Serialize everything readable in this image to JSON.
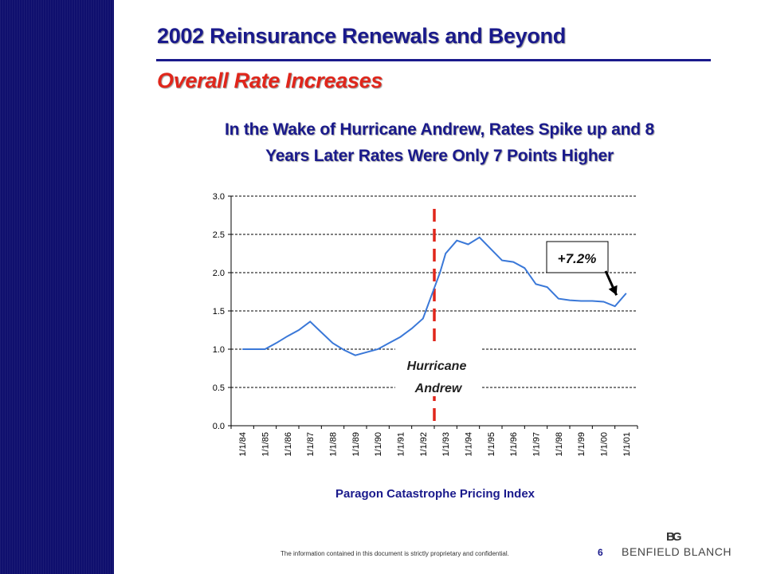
{
  "slide": {
    "title": "2002 Reinsurance Renewals and Beyond",
    "subtitle": "Overall Rate Increases",
    "headline_line1": "In the Wake of Hurricane Andrew, Rates Spike up and 8",
    "headline_line2": "Years Later Rates Were Only 7 Points Higher",
    "footer_note": "The information contained in this document is strictly proprietary and confidential.",
    "page_number": "6",
    "logo_mark": "BG",
    "logo_text": "BENFIELD BLANCH"
  },
  "colors": {
    "sidebar": "#0f0f6e",
    "title": "#1a1a8c",
    "subtitle": "#e0261b",
    "series_line": "#3a78d8",
    "event_line": "#e0261b"
  },
  "chart_data": {
    "type": "line",
    "xlabel": "Paragon Catastrophe Pricing Index",
    "ylabel": "",
    "ylim": [
      0,
      3
    ],
    "yticks": [
      "0.0",
      "0.5",
      "1.0",
      "1.5",
      "2.0",
      "2.5",
      "3.0"
    ],
    "categories": [
      "1/1/84",
      "1/1/85",
      "1/1/86",
      "1/1/87",
      "1/1/88",
      "1/1/89",
      "1/1/90",
      "1/1/91",
      "1/1/92",
      "1/1/93",
      "1/1/94",
      "1/1/95",
      "1/1/96",
      "1/1/97",
      "1/1/98",
      "1/1/99",
      "1/1/00",
      "1/1/01"
    ],
    "grid": true,
    "series": [
      {
        "x": [
          0,
          0.5,
          1,
          1.5,
          2,
          2.5,
          3,
          3.5,
          4,
          4.5,
          5,
          5.5,
          6,
          6.5,
          7,
          7.5,
          8,
          8.5,
          8.75,
          9,
          9.5,
          10,
          10.5,
          11,
          11.5,
          12,
          12.5,
          13,
          13.5,
          14,
          14.5,
          15,
          15.5,
          16,
          16.5,
          17
        ],
        "values": [
          1.0,
          1.0,
          1.0,
          1.08,
          1.17,
          1.25,
          1.36,
          1.22,
          1.08,
          0.99,
          0.92,
          0.96,
          1.0,
          1.08,
          1.16,
          1.27,
          1.4,
          1.8,
          2.0,
          2.25,
          2.42,
          2.37,
          2.46,
          2.31,
          2.16,
          2.14,
          2.06,
          1.85,
          1.81,
          1.66,
          1.64,
          1.63,
          1.63,
          1.62,
          1.56,
          1.73
        ]
      }
    ],
    "event_marker": {
      "x": 8.5,
      "label_line1": "Hurricane",
      "label_line2": "Andrew"
    },
    "annotation": {
      "text": "+7.2%",
      "points_to_x": 16.5
    }
  }
}
